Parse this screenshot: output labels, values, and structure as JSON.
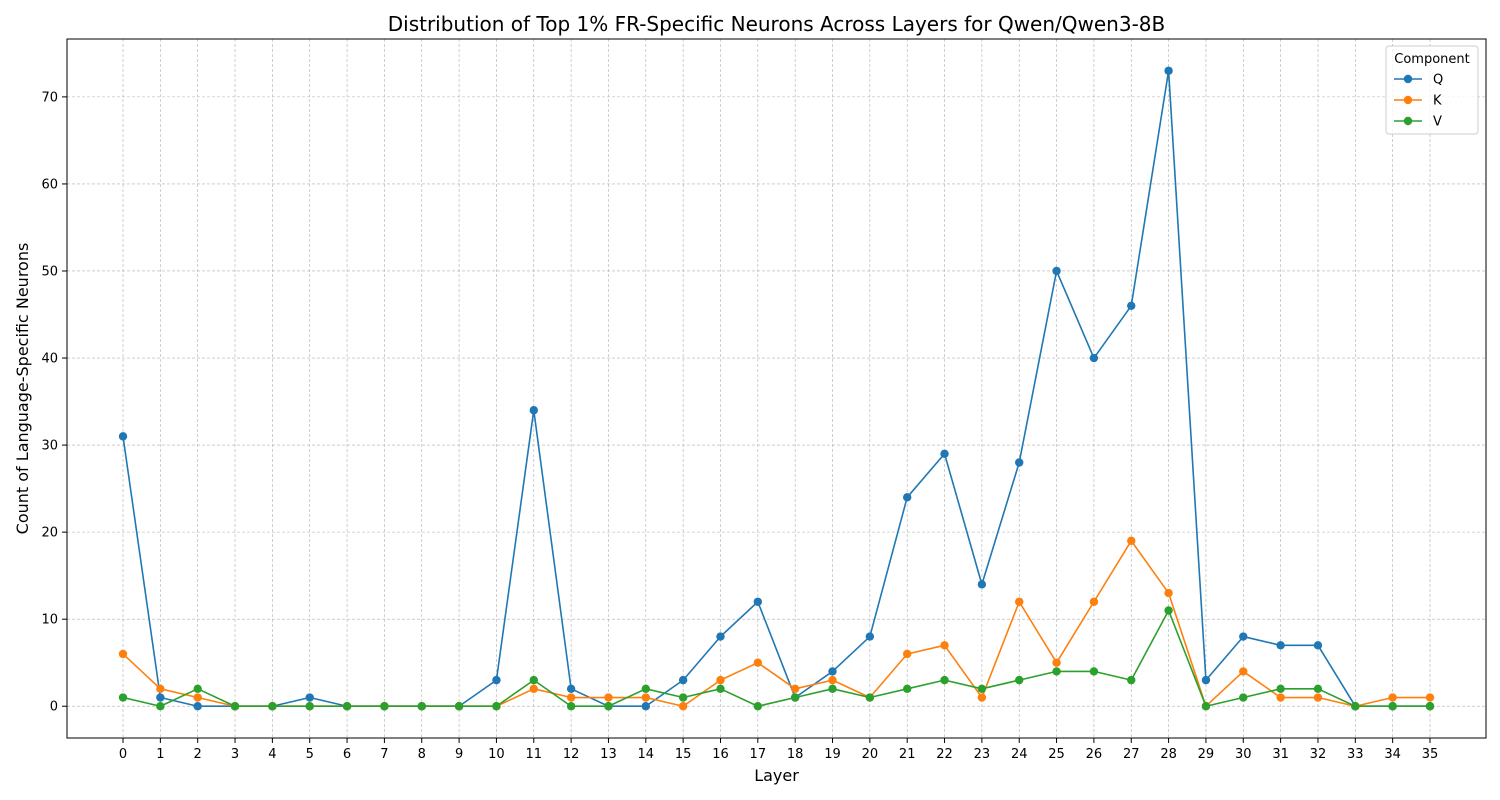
{
  "chart_data": {
    "type": "line",
    "title": "Distribution of Top 1% FR-Specific Neurons Across Layers for Qwen/Qwen3-8B",
    "xlabel": "Layer",
    "ylabel": "Count of Language-Specific Neurons",
    "x": [
      0,
      1,
      2,
      3,
      4,
      5,
      6,
      7,
      8,
      9,
      10,
      11,
      12,
      13,
      14,
      15,
      16,
      17,
      18,
      19,
      20,
      21,
      22,
      23,
      24,
      25,
      26,
      27,
      28,
      29,
      30,
      31,
      32,
      33,
      34,
      35
    ],
    "xlim": [
      -1.5,
      36.5
    ],
    "ylim": [
      -3.65,
      76.65
    ],
    "yticks": [
      0,
      10,
      20,
      30,
      40,
      50,
      60,
      70
    ],
    "grid": true,
    "legend": {
      "title": "Component",
      "placement": "top-right"
    },
    "series": [
      {
        "name": "Q",
        "color": "#1f77b4",
        "values": [
          31,
          1,
          0,
          0,
          0,
          1,
          0,
          0,
          0,
          0,
          3,
          34,
          2,
          0,
          0,
          3,
          8,
          12,
          1,
          4,
          8,
          24,
          29,
          14,
          28,
          50,
          40,
          46,
          73,
          3,
          8,
          7,
          7,
          0,
          0,
          0
        ]
      },
      {
        "name": "K",
        "color": "#ff7f0e",
        "values": [
          6,
          2,
          1,
          0,
          0,
          0,
          0,
          0,
          0,
          0,
          0,
          2,
          1,
          1,
          1,
          0,
          3,
          5,
          2,
          3,
          1,
          6,
          7,
          1,
          12,
          5,
          12,
          19,
          13,
          0,
          4,
          1,
          1,
          0,
          1,
          1
        ]
      },
      {
        "name": "V",
        "color": "#2ca02c",
        "values": [
          1,
          0,
          2,
          0,
          0,
          0,
          0,
          0,
          0,
          0,
          0,
          3,
          0,
          0,
          2,
          1,
          2,
          0,
          1,
          2,
          1,
          2,
          3,
          2,
          3,
          4,
          4,
          3,
          11,
          0,
          1,
          2,
          2,
          0,
          0,
          0
        ]
      }
    ]
  }
}
